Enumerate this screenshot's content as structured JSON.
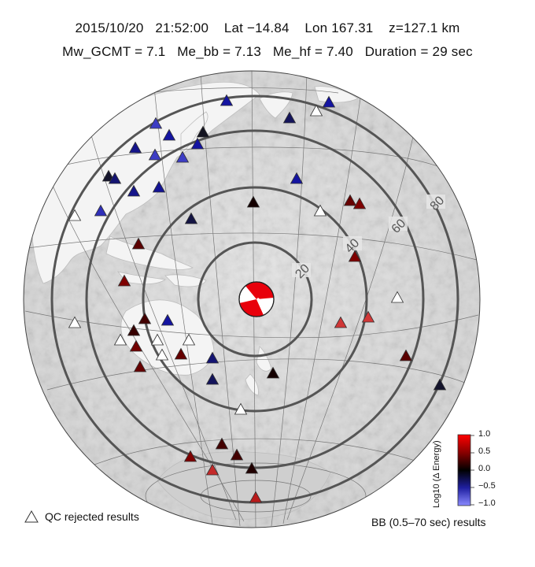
{
  "header": {
    "line1": {
      "date": "2015/10/20",
      "time": "21:52:00",
      "lat": "Lat −14.84",
      "lon": "Lon 167.31",
      "depth": "z=127.1 km"
    },
    "line2": {
      "mw_gcmt": "Mw_GCMT = 7.1",
      "me_bb": "Me_bb = 7.13",
      "me_hf": "Me_hf = 7.40",
      "duration": "Duration = 29 sec"
    }
  },
  "map": {
    "contour_labels": [
      "20",
      "40",
      "60",
      "80"
    ],
    "colors": {
      "contour": "#555555",
      "grid": "#777777",
      "mechanism_fill": "#e8000b",
      "rejected": "#ffffff"
    },
    "legend_qc": "QC rejected results",
    "legend_bb": "BB (0.5–70 sec) results",
    "colorbar": {
      "title": "Log10 (Δ Energy)",
      "min": -1.0,
      "max": 1.0,
      "ticks": [
        "1.0",
        "0.5",
        "0.0",
        "−0.5",
        "−1.0"
      ],
      "colors": [
        "#ff0000",
        "#000000",
        "#0000ff"
      ]
    }
  }
}
